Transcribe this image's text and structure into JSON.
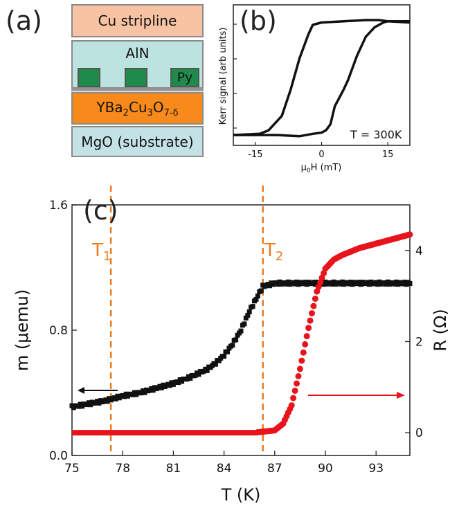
{
  "panel_a": {
    "label": "(a)",
    "layers": {
      "cu": "Cu stripline",
      "aln": "AlN",
      "py": "Py",
      "ybco": [
        "YBa",
        "2",
        "Cu",
        "3",
        "O",
        "7-δ"
      ],
      "mgo": "MgO (substrate)"
    },
    "colors": {
      "cu": "#f7c3a2",
      "aln": "#bde3e0",
      "py": "#1f8a4c",
      "ybco": "#f78a1a",
      "mgo": "#c4e2e6"
    }
  },
  "panel_b": {
    "label": "(b)",
    "annotation": "T = 300K",
    "ylabel": "Kerr signal (arb units)",
    "xlabel_parts": [
      "μ",
      "0",
      "H (mT)"
    ]
  },
  "panel_c": {
    "label": "(c)",
    "xlabel": "T (K)",
    "ylabel_left": "m (μemu)",
    "ylabel_right": "R (Ω)",
    "t1_label": [
      "T",
      "1"
    ],
    "t2_label": [
      "T",
      "2"
    ],
    "colors": {
      "m": "#111111",
      "R": "#e8141c",
      "lines": "#ee7a1c"
    }
  },
  "chart_data": [
    {
      "type": "line",
      "panel": "b",
      "xlim": [
        -20,
        20
      ],
      "xticks": [
        "-15",
        "0",
        "15"
      ],
      "ylim": [
        0,
        1
      ],
      "series": [
        {
          "x": [
            -20,
            -14,
            -12,
            -9,
            -7,
            -5,
            -3,
            -2,
            0,
            5,
            10,
            13,
            15,
            20
          ],
          "y": [
            0.04,
            0.05,
            0.08,
            0.2,
            0.42,
            0.68,
            0.88,
            0.96,
            0.98,
            0.99,
            1.0,
            1.0,
            0.99,
            0.99
          ]
        },
        {
          "x": [
            -20,
            -10,
            -5,
            -2,
            0,
            1,
            2,
            3,
            5,
            6,
            8,
            10,
            12,
            14,
            15,
            20
          ],
          "y": [
            0.04,
            0.04,
            0.03,
            0.05,
            0.06,
            0.08,
            0.13,
            0.28,
            0.42,
            0.5,
            0.7,
            0.86,
            0.94,
            0.98,
            0.99,
            0.98
          ]
        }
      ]
    },
    {
      "type": "scatter",
      "panel": "c",
      "xlim": [
        75,
        95
      ],
      "xticks": [
        75,
        78,
        81,
        84,
        87,
        90,
        93
      ],
      "ylim_left": [
        0,
        1.6
      ],
      "yticks_left": [
        "0.0",
        "0.8",
        "1.6"
      ],
      "ylim_right": [
        -0.5,
        5
      ],
      "yticks_right": [
        "0",
        "2",
        "4"
      ],
      "vlines": {
        "T1": 77.3,
        "T2": 86.3
      },
      "series": [
        {
          "name": "m",
          "axis": "left",
          "x": [
            75,
            76,
            77,
            78,
            79,
            80,
            81,
            82,
            83,
            83.5,
            84,
            84.5,
            85,
            85.5,
            86,
            86.3,
            87,
            88,
            90,
            92,
            95
          ],
          "y": [
            0.31,
            0.33,
            0.35,
            0.38,
            0.4,
            0.43,
            0.46,
            0.5,
            0.55,
            0.59,
            0.64,
            0.71,
            0.8,
            0.92,
            1.02,
            1.08,
            1.1,
            1.1,
            1.1,
            1.1,
            1.1
          ]
        },
        {
          "name": "R",
          "axis": "right",
          "x": [
            75,
            80,
            85,
            86,
            87,
            87.5,
            88,
            88.5,
            89,
            89.5,
            90,
            90.5,
            91,
            92,
            93,
            94,
            95
          ],
          "y": [
            0,
            0,
            0,
            0.01,
            0.05,
            0.2,
            0.6,
            1.4,
            2.3,
            3.1,
            3.6,
            3.8,
            3.9,
            4.05,
            4.15,
            4.25,
            4.35
          ]
        }
      ]
    }
  ]
}
